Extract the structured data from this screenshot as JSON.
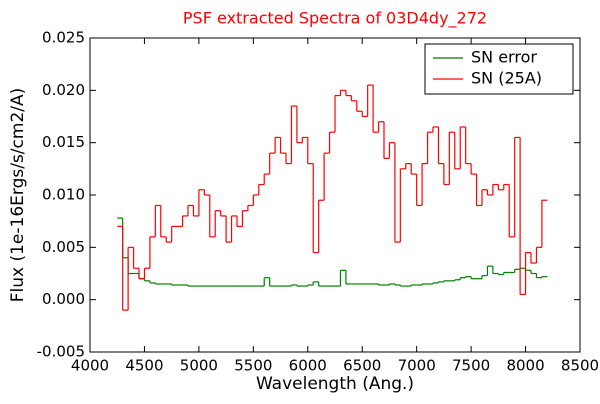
{
  "chart_data": {
    "type": "step",
    "title": "PSF extracted Spectra of 03D4dy_272",
    "x_label": "Wavelength (Ang.)",
    "y_label": "Flux (1e-16Ergs/s/cm2/A)",
    "x": [
      4250,
      4300,
      4350,
      4400,
      4450,
      4500,
      4550,
      4600,
      4650,
      4700,
      4750,
      4800,
      4850,
      4900,
      4950,
      5000,
      5050,
      5100,
      5150,
      5200,
      5250,
      5300,
      5350,
      5400,
      5450,
      5500,
      5550,
      5600,
      5650,
      5700,
      5750,
      5800,
      5850,
      5900,
      5950,
      6000,
      6050,
      6100,
      6150,
      6200,
      6250,
      6300,
      6350,
      6400,
      6450,
      6500,
      6550,
      6600,
      6650,
      6700,
      6750,
      6800,
      6850,
      6900,
      6950,
      7000,
      7050,
      7100,
      7150,
      7200,
      7250,
      7300,
      7350,
      7400,
      7450,
      7500,
      7550,
      7600,
      7650,
      7700,
      7750,
      7800,
      7850,
      7900,
      7950,
      8000,
      8050,
      8100,
      8150
    ],
    "series": [
      {
        "name": "SN error",
        "color": "#008000",
        "values": [
          0.0078,
          0.004,
          0.0025,
          0.0025,
          0.002,
          0.0018,
          0.0016,
          0.0015,
          0.0015,
          0.0015,
          0.0014,
          0.0014,
          0.0014,
          0.0013,
          0.0013,
          0.0013,
          0.0013,
          0.0013,
          0.0013,
          0.0013,
          0.0013,
          0.0013,
          0.0013,
          0.0013,
          0.0013,
          0.0013,
          0.0013,
          0.0021,
          0.0013,
          0.0013,
          0.0013,
          0.0013,
          0.0014,
          0.0013,
          0.0013,
          0.0014,
          0.0017,
          0.0013,
          0.0013,
          0.0013,
          0.0013,
          0.0028,
          0.0015,
          0.0015,
          0.0015,
          0.0015,
          0.0015,
          0.0015,
          0.0014,
          0.0014,
          0.0015,
          0.0014,
          0.0013,
          0.0013,
          0.0014,
          0.0014,
          0.0015,
          0.0015,
          0.0016,
          0.0017,
          0.0018,
          0.0018,
          0.0019,
          0.0021,
          0.0022,
          0.002,
          0.002,
          0.0023,
          0.0032,
          0.0025,
          0.0024,
          0.0026,
          0.0026,
          0.0029,
          0.003,
          0.0028,
          0.0025,
          0.0021,
          0.0022
        ]
      },
      {
        "name": "SN (25A)",
        "color": "#ff0000",
        "values": [
          0.007,
          -0.001,
          0.005,
          0.003,
          0.002,
          0.003,
          0.006,
          0.009,
          0.006,
          0.0055,
          0.007,
          0.007,
          0.008,
          0.009,
          0.008,
          0.0105,
          0.01,
          0.006,
          0.0085,
          0.008,
          0.0055,
          0.008,
          0.007,
          0.0085,
          0.009,
          0.01,
          0.011,
          0.012,
          0.014,
          0.0155,
          0.014,
          0.013,
          0.0185,
          0.015,
          0.0155,
          0.013,
          0.0045,
          0.0095,
          0.014,
          0.016,
          0.0195,
          0.02,
          0.0195,
          0.019,
          0.018,
          0.0175,
          0.0205,
          0.016,
          0.017,
          0.0135,
          0.015,
          0.0055,
          0.0125,
          0.013,
          0.012,
          0.009,
          0.013,
          0.016,
          0.0165,
          0.013,
          0.011,
          0.016,
          0.0125,
          0.0165,
          0.013,
          0.012,
          0.009,
          0.0105,
          0.01,
          0.011,
          0.0105,
          0.011,
          0.006,
          0.0155,
          0.0005,
          0.0045,
          0.0035,
          0.005,
          0.0095
        ]
      }
    ],
    "xlim": [
      4000,
      8500
    ],
    "xticks": [
      4000,
      4500,
      5000,
      5500,
      6000,
      6500,
      7000,
      7500,
      8000,
      8500
    ],
    "ylim": [
      -0.005,
      0.025
    ],
    "yticks": [
      -0.005,
      {
        "value": 0,
        "label": "0.000"
      },
      0.005,
      {
        "value": 0.01,
        "label": "0.010"
      },
      0.015,
      {
        "value": 0.02,
        "label": "0.020"
      },
      0.025
    ],
    "legend": "upper right"
  }
}
